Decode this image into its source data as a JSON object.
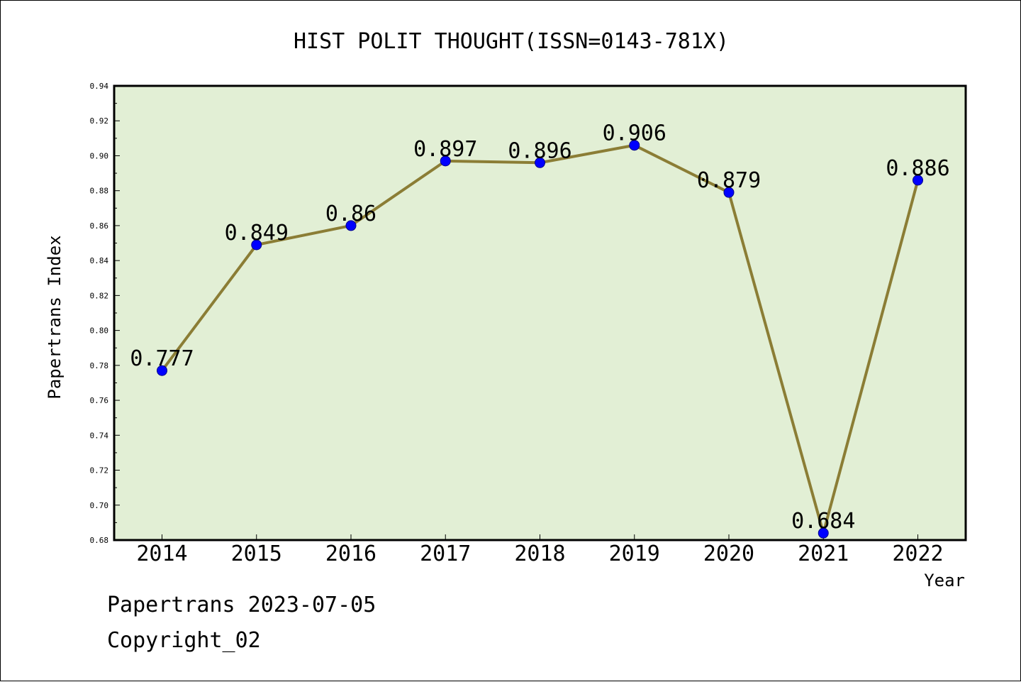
{
  "chart_data": {
    "type": "line",
    "title": "HIST POLIT THOUGHT(ISSN=0143-781X)",
    "xlabel": "Year",
    "ylabel": "Papertrans Index",
    "categories": [
      "2014",
      "2015",
      "2016",
      "2017",
      "2018",
      "2019",
      "2020",
      "2021",
      "2022"
    ],
    "values": [
      0.777,
      0.849,
      0.86,
      0.897,
      0.896,
      0.906,
      0.879,
      0.684,
      0.886
    ],
    "data_labels": [
      "0.777",
      "0.849",
      "0.86",
      "0.897",
      "0.896",
      "0.906",
      "0.879",
      "0.684",
      "0.886"
    ],
    "ylim": [
      0.68,
      0.94
    ],
    "y_ticks": [
      "0.68",
      "0.70",
      "0.72",
      "0.74",
      "0.76",
      "0.78",
      "0.80",
      "0.82",
      "0.84",
      "0.86",
      "0.88",
      "0.90",
      "0.92",
      "0.94"
    ],
    "grid": false,
    "colors": {
      "plot_background": "#e2efd5",
      "line": "#8b7d35",
      "marker": "#0000ff",
      "marker_edge": "#00008b",
      "axes": "#000000"
    }
  },
  "footer": {
    "line1": "Papertrans 2023-07-05",
    "line2": "Copyright_02"
  }
}
